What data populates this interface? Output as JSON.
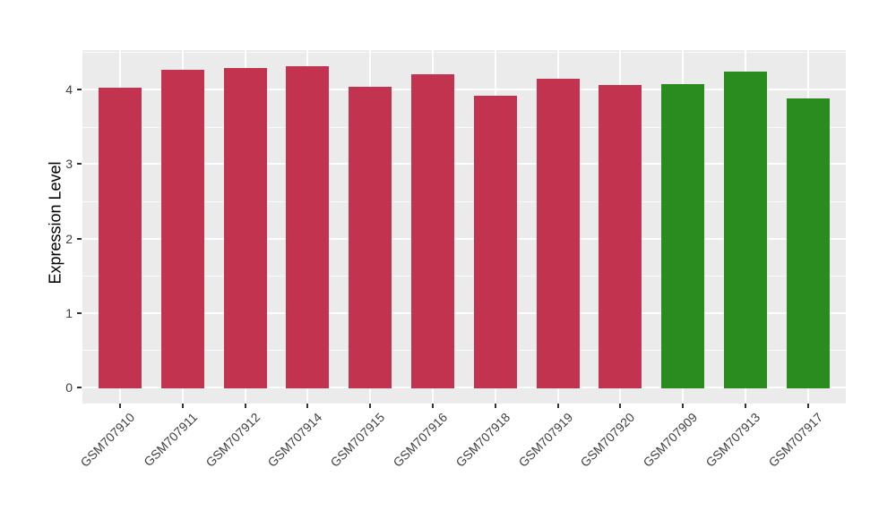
{
  "figure": {
    "background": "#FFFFFF",
    "panel_background": "#EBEBEB",
    "gridline_color": "#FFFFFF",
    "tick_color": "#333333",
    "tick_label_color": "#404040",
    "axis_title_color": "#000000"
  },
  "chart_data": {
    "type": "bar",
    "title": "",
    "xlabel": "",
    "ylabel": "Expression Level",
    "ylim": [
      0,
      4.55
    ],
    "yticks": [
      0,
      1,
      2,
      3,
      4
    ],
    "yticks_minor": [
      0.5,
      1.5,
      2.5,
      3.5,
      4.5
    ],
    "grid": true,
    "legend": false,
    "x_tick_angle_deg": 45,
    "group_colors": {
      "red_group": "#C23350",
      "green_group": "#2A8B1E"
    },
    "categories": [
      "GSM707910",
      "GSM707911",
      "GSM707912",
      "GSM707914",
      "GSM707915",
      "GSM707916",
      "GSM707918",
      "GSM707919",
      "GSM707920",
      "GSM707909",
      "GSM707913",
      "GSM707917"
    ],
    "values": [
      4.03,
      4.27,
      4.29,
      4.31,
      4.04,
      4.21,
      3.92,
      4.14,
      4.06,
      4.07,
      4.24,
      3.88
    ],
    "bar_colors": [
      "#C23350",
      "#C23350",
      "#C23350",
      "#C23350",
      "#C23350",
      "#C23350",
      "#C23350",
      "#C23350",
      "#C23350",
      "#2A8B1E",
      "#2A8B1E",
      "#2A8B1E"
    ]
  }
}
